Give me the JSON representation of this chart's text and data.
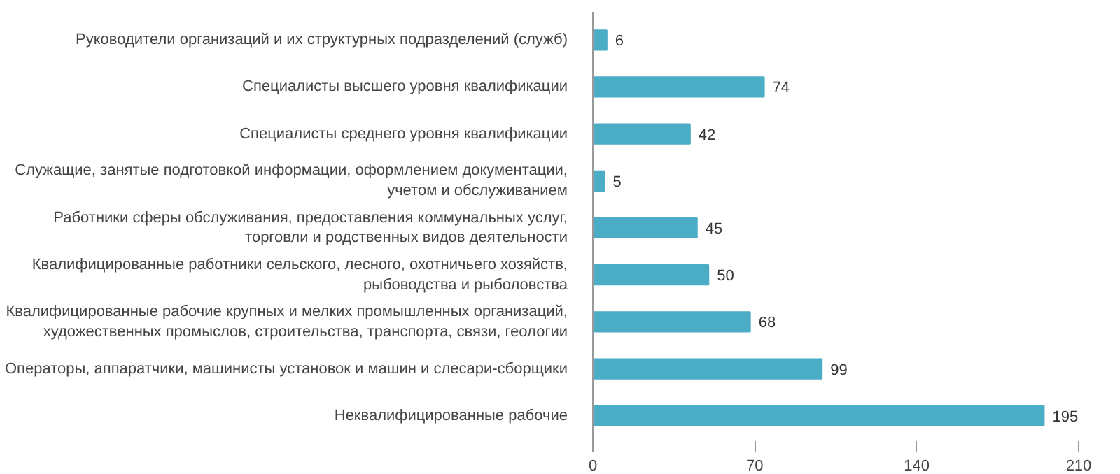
{
  "chart_data": {
    "type": "bar",
    "orientation": "horizontal",
    "categories": [
      "Руководители организаций и их структурных подразделений (служб)",
      "Специалисты высшего уровня квалификации",
      "Специалисты среднего уровня квалификации",
      "Служащие, занятые подготовкой информации, оформлением документации,\nучетом и обслуживанием",
      "Работники сферы обслуживания, предоставления коммунальных услуг,\nторговли и родственных видов деятельности",
      "Квалифицированные работники сельского, лесного, охотничьего хозяйств,\nрыбоводства и рыболовства",
      "Квалифицированные рабочие крупных и мелких промышленных организаций,\nхудожественных промыслов, строительства, транспорта, связи, геологии",
      "Операторы, аппаратчики, машинисты установок и машин и слесари-сборщики",
      "Неквалифицированные рабочие"
    ],
    "values": [
      6,
      74,
      42,
      5,
      45,
      50,
      68,
      99,
      195
    ],
    "color": "#4bacc6",
    "xlim": [
      0,
      210
    ],
    "xticks": [
      0,
      70,
      140,
      210
    ],
    "data_labels": true,
    "grid": false
  }
}
